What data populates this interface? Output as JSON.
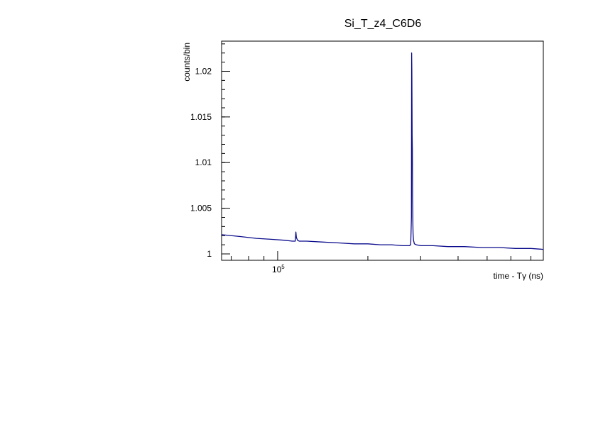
{
  "chart_data": {
    "type": "line",
    "title": "Si_T_z4_C6D6",
    "xlabel": "time - Tγ (ns)",
    "ylabel": "counts/bin",
    "x_scale": "log",
    "xlim": [
      65000,
      770000
    ],
    "ylim": [
      0.9993,
      1.0233
    ],
    "y_ticks": [
      1,
      1.005,
      1.01,
      1.015,
      1.02
    ],
    "y_tick_labels": [
      "1",
      "1.005",
      "1.01",
      "1.015",
      "1.02"
    ],
    "x_tick_major": 100000,
    "x_tick_major_label": {
      "base": "10",
      "exp": "5"
    },
    "x_tick_minor": [
      70000,
      80000,
      90000,
      200000,
      300000,
      400000,
      500000,
      600000,
      700000
    ],
    "grid": false,
    "legend": "none",
    "line_color": "#0a0a8c",
    "series": [
      {
        "x": [
          65000,
          75000,
          85000,
          95000,
          105000,
          112000,
          114500,
          115000,
          115500,
          116500,
          118000,
          125000,
          140000,
          160000,
          180000,
          200000,
          220000,
          240000,
          260000,
          275000,
          278000,
          279500,
          280000,
          280500,
          281000,
          281500,
          282000,
          282500,
          283000,
          284000,
          286000,
          290000,
          300000,
          330000,
          370000,
          420000,
          480000,
          550000,
          620000,
          700000,
          770000
        ],
        "values": [
          1.0021,
          1.0019,
          1.0017,
          1.0016,
          1.0015,
          1.0014,
          1.0014,
          1.0024,
          1.0018,
          1.0015,
          1.0014,
          1.0014,
          1.0013,
          1.0012,
          1.0011,
          1.0011,
          1.001,
          1.001,
          1.0009,
          1.0009,
          1.001,
          1.004,
          1.022,
          1.02,
          1.013,
          1.0115,
          1.006,
          1.0035,
          1.0022,
          1.0015,
          1.0011,
          1.001,
          1.0009,
          1.0009,
          1.0008,
          1.0008,
          1.0007,
          1.0007,
          1.0006,
          1.0006,
          1.0005
        ]
      }
    ]
  }
}
